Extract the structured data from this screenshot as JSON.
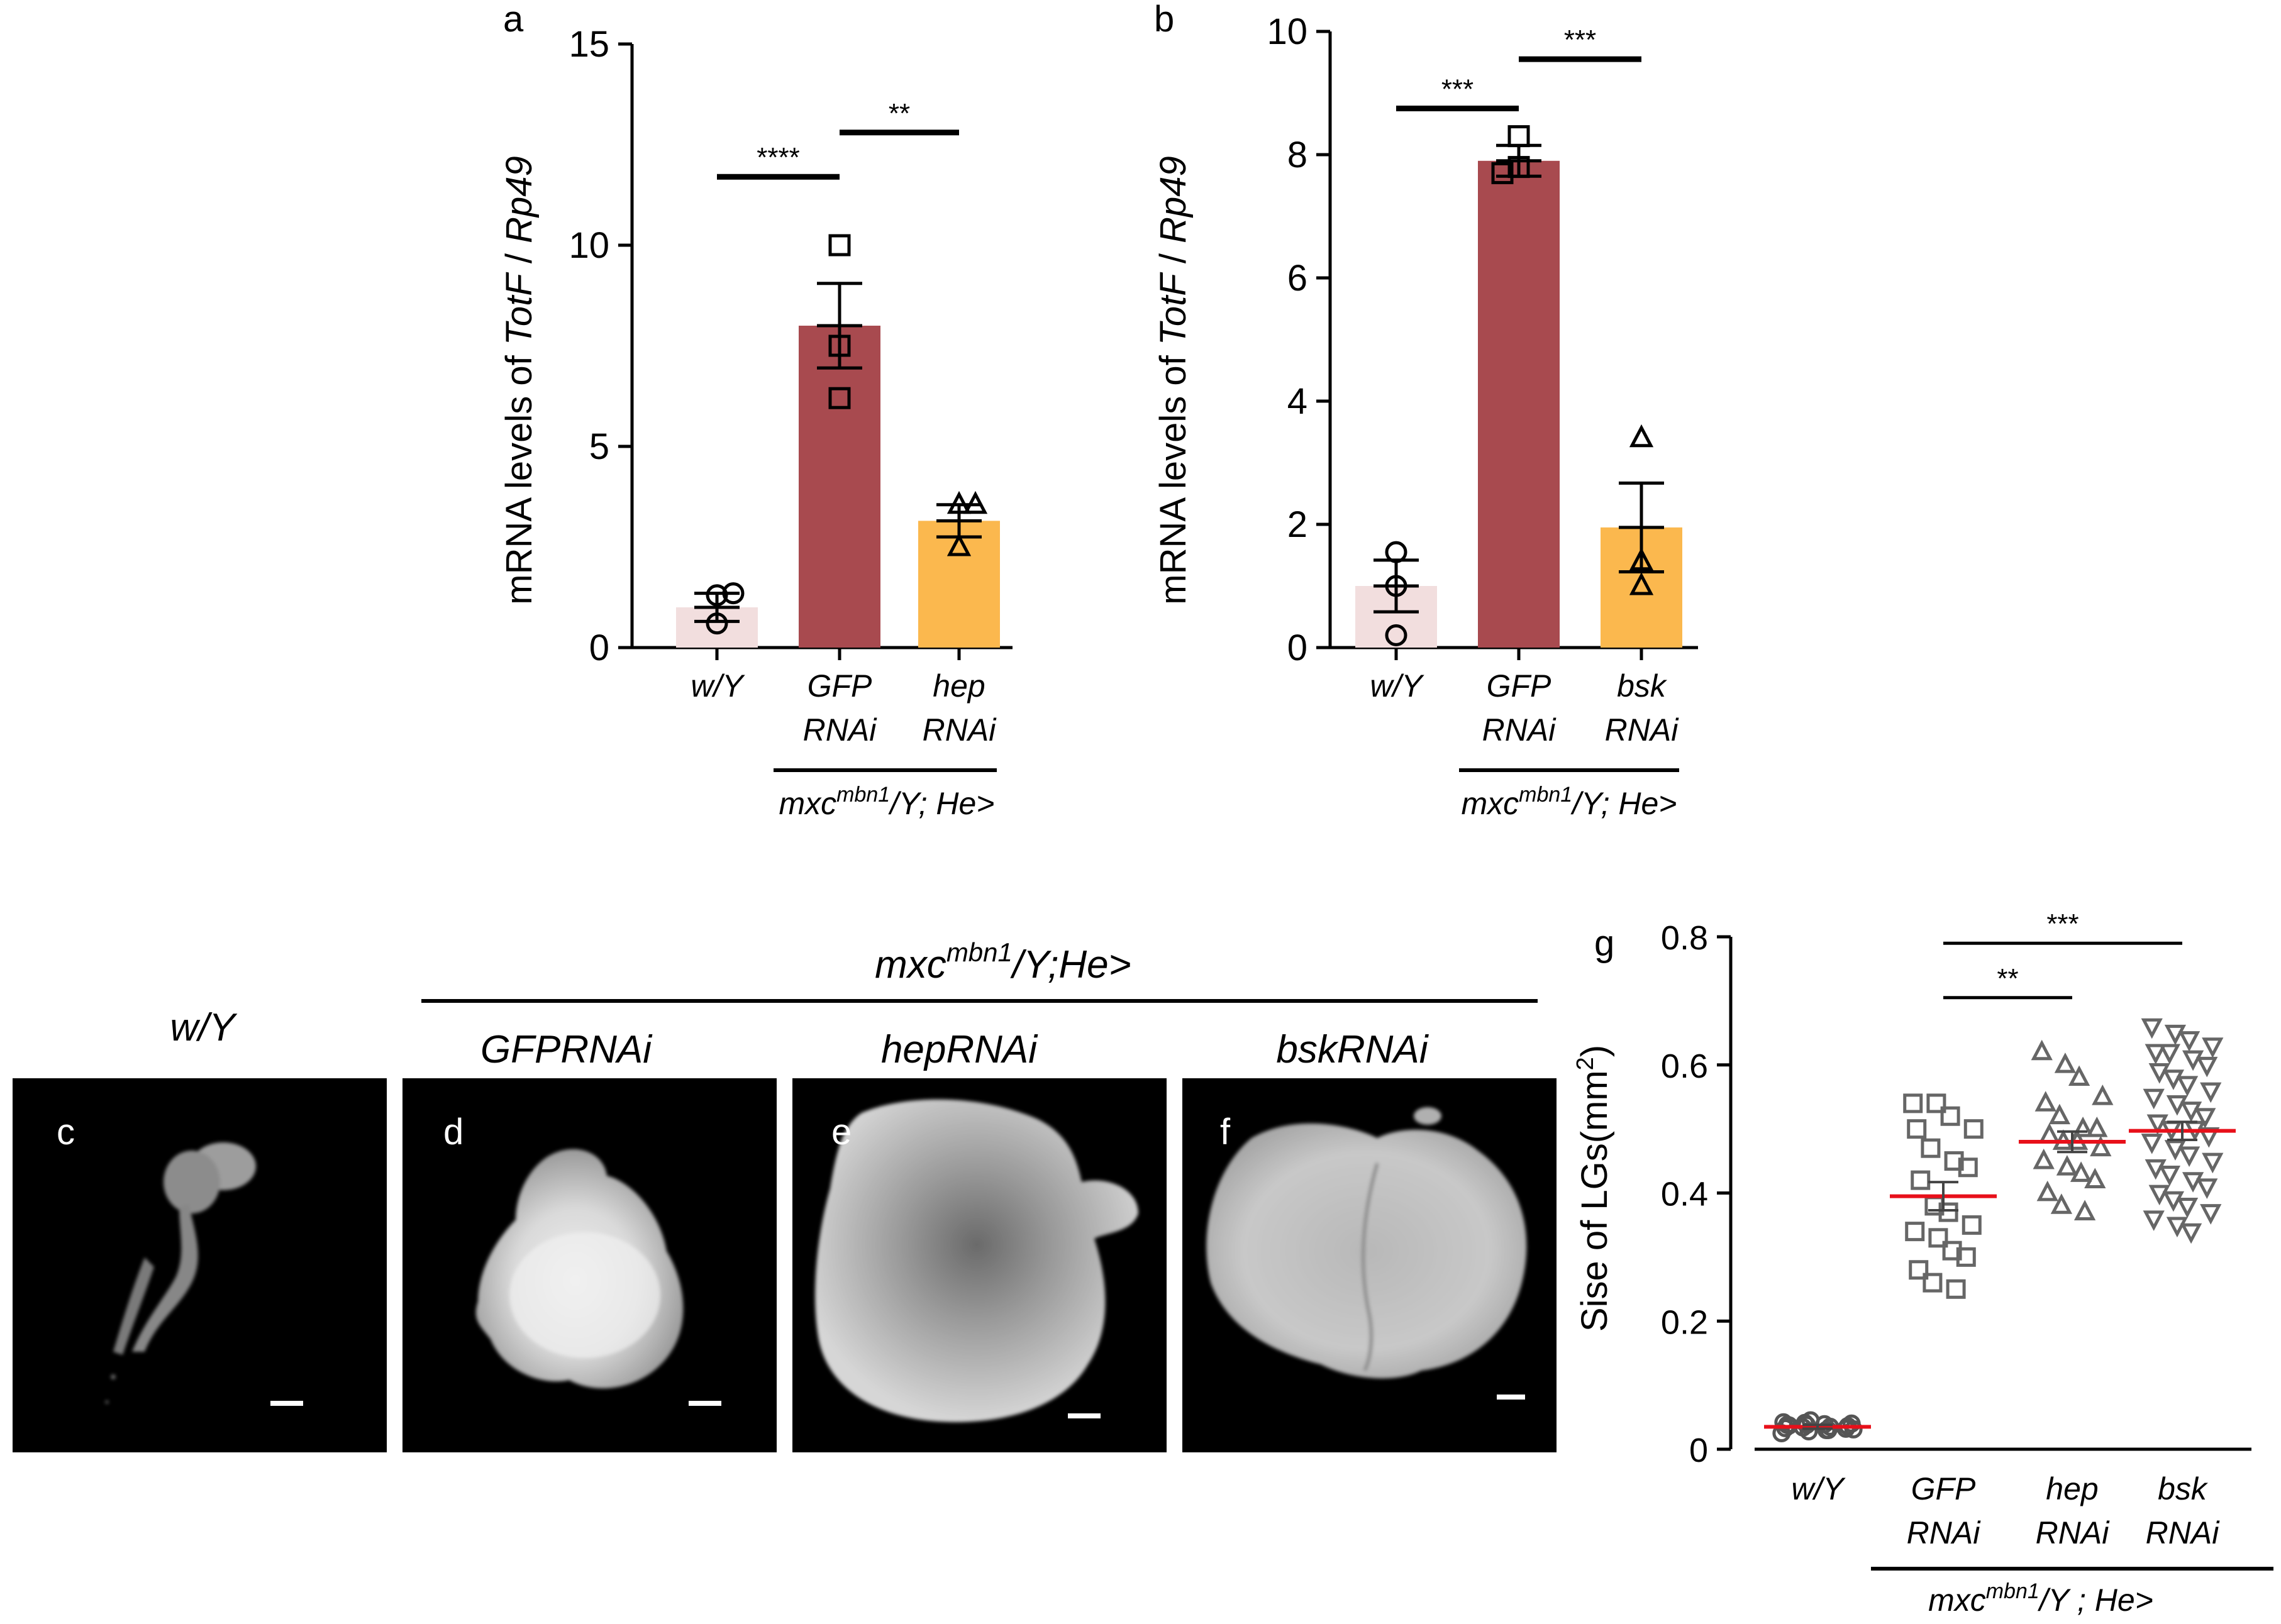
{
  "chart_data": [
    {
      "panel": "a",
      "type": "bar",
      "ylabel_prefix": "mRNA levels of ",
      "ylabel_gene": "TotF",
      "ylabel_sep": " / ",
      "ylabel_ref": "Rp49",
      "ylim": [
        0,
        15
      ],
      "yticks": [
        0,
        5,
        10,
        15
      ],
      "categories": [
        {
          "line1": "w/Y",
          "line2": ""
        },
        {
          "line1": "GFP",
          "line2": "RNAi"
        },
        {
          "line1": "hep",
          "line2": "RNAi"
        }
      ],
      "group_label": {
        "base": "mxc",
        "sup": "mbn1",
        "rest": "/Y; He>"
      },
      "bars": [
        {
          "mean": 1.0,
          "sem": 0.35,
          "color": "#f2dede",
          "marker": "circle",
          "points": [
            0.6,
            1.3,
            1.35
          ]
        },
        {
          "mean": 8.0,
          "sem": 1.05,
          "color": "#a84a4f",
          "marker": "square",
          "points": [
            6.2,
            7.5,
            10.0
          ]
        },
        {
          "mean": 3.15,
          "sem": 0.4,
          "color": "#fbb84e",
          "marker": "triangle",
          "points": [
            2.5,
            3.55,
            3.55
          ]
        }
      ],
      "significance": [
        {
          "from": 0,
          "to": 1,
          "y": 11.7,
          "label": "****"
        },
        {
          "from": 1,
          "to": 2,
          "y": 12.8,
          "label": "**"
        }
      ]
    },
    {
      "panel": "b",
      "type": "bar",
      "ylabel_prefix": "mRNA levels of ",
      "ylabel_gene": "TotF",
      "ylabel_sep": " / ",
      "ylabel_ref": "Rp49",
      "ylim": [
        0,
        10
      ],
      "yticks": [
        0,
        2,
        4,
        6,
        8,
        10
      ],
      "categories": [
        {
          "line1": "w/Y",
          "line2": ""
        },
        {
          "line1": "GFP",
          "line2": "RNAi"
        },
        {
          "line1": "bsk",
          "line2": "RNAi"
        }
      ],
      "group_label": {
        "base": "mxc",
        "sup": "mbn1",
        "rest": "/Y; He>"
      },
      "bars": [
        {
          "mean": 1.0,
          "sem": 0.42,
          "color": "#f2dede",
          "marker": "circle",
          "points": [
            0.2,
            1.0,
            1.55
          ]
        },
        {
          "mean": 7.9,
          "sem": 0.25,
          "color": "#a84a4f",
          "marker": "square",
          "points": [
            7.7,
            7.8,
            8.3
          ]
        },
        {
          "mean": 1.95,
          "sem": 0.72,
          "color": "#fbb84e",
          "marker": "triangle",
          "points": [
            1.0,
            1.4,
            3.4
          ]
        }
      ],
      "significance": [
        {
          "from": 0,
          "to": 1,
          "y": 8.75,
          "label": "***"
        },
        {
          "from": 1,
          "to": 2,
          "y": 9.55,
          "label": "***"
        }
      ]
    },
    {
      "panel": "g",
      "type": "scatter",
      "ylabel_prefix": "Sise of LGs(mm",
      "ylabel_sup": "2",
      "ylabel_suffix": ")",
      "ylim": [
        0,
        0.8
      ],
      "yticks": [
        "0",
        "0.2",
        "0.4",
        "0.6",
        "0.8"
      ],
      "categories": [
        {
          "line1": "w/Y",
          "line2": ""
        },
        {
          "line1": "GFP",
          "line2": "RNAi"
        },
        {
          "line1": "hep",
          "line2": "RNAi"
        },
        {
          "line1": "bsk",
          "line2": "RNAi"
        }
      ],
      "group_label": {
        "base": "mxc",
        "sup": "mbn1",
        "rest": "/Y ; He>"
      },
      "groups": [
        {
          "marker": "circle",
          "mean": 0.035,
          "sem": 0.003,
          "points": [
            0.025,
            0.028,
            0.03,
            0.031,
            0.033,
            0.034,
            0.035,
            0.036,
            0.037,
            0.038,
            0.039,
            0.04,
            0.042,
            0.045,
            0.03,
            0.032,
            0.038,
            0.041
          ]
        },
        {
          "marker": "square",
          "mean": 0.395,
          "sem": 0.022,
          "points": [
            0.54,
            0.54,
            0.52,
            0.5,
            0.5,
            0.47,
            0.45,
            0.44,
            0.42,
            0.38,
            0.37,
            0.35,
            0.34,
            0.33,
            0.31,
            0.3,
            0.28,
            0.26,
            0.25
          ]
        },
        {
          "marker": "triangle",
          "mean": 0.48,
          "sem": 0.016,
          "points": [
            0.62,
            0.6,
            0.58,
            0.55,
            0.54,
            0.52,
            0.5,
            0.5,
            0.49,
            0.48,
            0.48,
            0.47,
            0.45,
            0.44,
            0.43,
            0.42,
            0.4,
            0.38,
            0.37
          ]
        },
        {
          "marker": "triangle-down",
          "mean": 0.497,
          "sem": 0.014,
          "points": [
            0.66,
            0.65,
            0.64,
            0.63,
            0.62,
            0.62,
            0.61,
            0.6,
            0.59,
            0.58,
            0.57,
            0.56,
            0.55,
            0.54,
            0.53,
            0.52,
            0.51,
            0.5,
            0.5,
            0.49,
            0.48,
            0.47,
            0.46,
            0.45,
            0.44,
            0.43,
            0.42,
            0.41,
            0.4,
            0.39,
            0.38,
            0.37,
            0.36,
            0.35,
            0.34
          ]
        }
      ],
      "mean_line_color": "#e8101a",
      "significance": [
        {
          "from": 1,
          "to": 2,
          "y": 0.705,
          "label": "**"
        },
        {
          "from": 1,
          "to": 3,
          "y": 0.79,
          "label": "***"
        }
      ]
    }
  ],
  "panel_labels": {
    "a": "a",
    "b": "b",
    "c": "c",
    "d": "d",
    "e": "e",
    "f": "f",
    "g": "g"
  },
  "images": {
    "wy_title": "w/Y",
    "group_title": {
      "base": "mxc",
      "sup": "mbn1",
      "rest": "/Y;He>"
    },
    "panels": [
      {
        "key": "c",
        "title": "w/Y"
      },
      {
        "key": "d",
        "title": "GFPRNAi"
      },
      {
        "key": "e",
        "title": "hepRNAi"
      },
      {
        "key": "f",
        "title": "bskRNAi"
      }
    ]
  }
}
